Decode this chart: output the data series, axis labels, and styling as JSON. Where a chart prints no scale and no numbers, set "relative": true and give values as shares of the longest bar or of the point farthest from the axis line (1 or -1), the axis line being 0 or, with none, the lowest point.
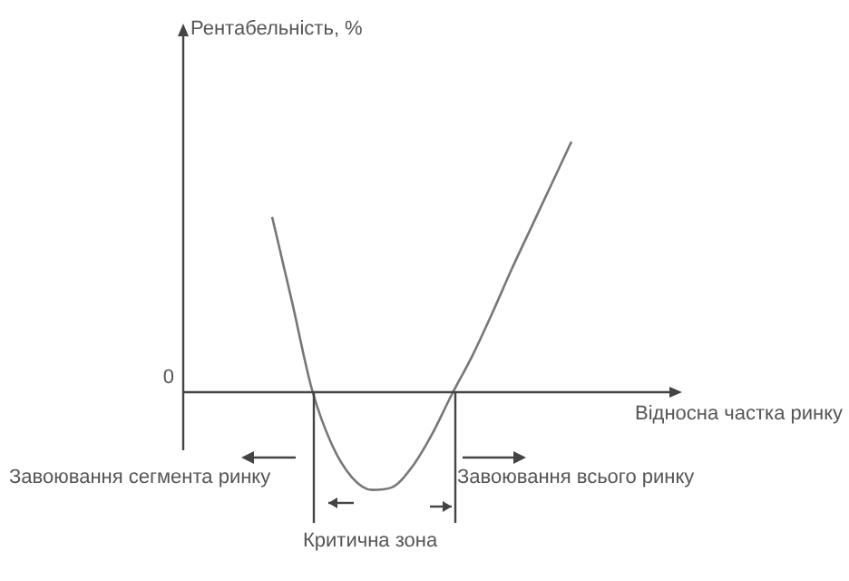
{
  "chart_data": {
    "type": "line",
    "relative": true,
    "xlabel": "Відносна частка ринку",
    "categories": [
      null,
      null,
      null,
      null,
      null,
      null,
      null,
      null,
      null,
      null,
      null,
      null,
      null,
      null,
      null,
      null
    ],
    "values": [
      0.7,
      0.36,
      0.01,
      -0.21,
      -0.34,
      -0.39,
      -0.38,
      -0.3,
      -0.17,
      -0.01,
      0.14,
      0.31,
      0.49,
      0.66,
      0.83,
      1
    ],
    "color": "#777777",
    "annotations": [
      "Рентабельність, %",
      "0",
      "Завоювання сегмента ринку",
      "Завоювання всього ринку",
      "Критична зона"
    ]
  }
}
